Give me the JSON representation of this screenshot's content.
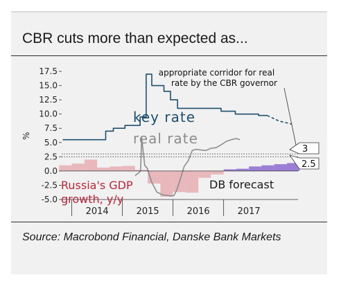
{
  "title": "CBR cuts more than expected as...",
  "source": "Source: Macrobond Financial, Danske Bank Markets",
  "chart_data": {
    "type": "line",
    "ylabel": "%",
    "ylim": [
      -5.0,
      17.5
    ],
    "yticks": [
      "17.5",
      "15.0",
      "12.5",
      "10.0",
      "7.5",
      "5.0",
      "2.5",
      "0.0",
      "-2.5",
      "-5.0"
    ],
    "ytick_values": [
      17.5,
      15.0,
      12.5,
      10.0,
      7.5,
      5.0,
      2.5,
      0.0,
      -2.5,
      -5.0
    ],
    "xlim": [
      2013.3,
      2017.97
    ],
    "xticks": [
      "2014",
      "2015",
      "2016",
      "2017"
    ],
    "xtick_centers": [
      2014.0,
      2015.0,
      2016.0,
      2017.0
    ],
    "year_separators": [
      2013.5,
      2014.5,
      2015.5,
      2016.5
    ],
    "annotations": {
      "key_rate": "key rate",
      "real_rate": "real rate",
      "gdp": "Russia's GDP growth, y/y",
      "db_forecast": "DB forecast",
      "corridor": "appropriate corridor for real rate by the CBR governor",
      "corridor_upper": "3",
      "corridor_lower": "2.5"
    },
    "corridor": [
      2.5,
      3.0
    ],
    "colors": {
      "key_rate": "#1f4e6e",
      "real_rate": "#8c8c8c",
      "gdp": "#e8b8bc",
      "gdp_label": "#b5283c",
      "forecast": "#9b7fd4",
      "corridor": "#555555"
    },
    "series": [
      {
        "name": "key rate",
        "x": [
          2013.32,
          2013.68,
          2013.68,
          2014.17,
          2014.17,
          2014.32,
          2014.32,
          2014.55,
          2014.55,
          2014.85,
          2014.85,
          2014.97,
          2014.97,
          2015.08,
          2015.08,
          2015.32,
          2015.32,
          2015.45,
          2015.45,
          2015.59,
          2015.59,
          2016.45,
          2016.45,
          2016.73,
          2016.73,
          2017.19,
          2017.19,
          2017.36
        ],
        "y": [
          5.5,
          5.5,
          5.5,
          5.5,
          7.0,
          7.0,
          7.5,
          7.5,
          8.0,
          8.0,
          9.5,
          9.5,
          17.0,
          17.0,
          15.0,
          15.0,
          14.0,
          14.0,
          12.5,
          12.5,
          11.0,
          11.0,
          10.5,
          10.5,
          10.0,
          10.0,
          9.75,
          9.75
        ]
      },
      {
        "name": "key rate forecast",
        "x": [
          2017.36,
          2017.6,
          2017.85
        ],
        "y": [
          9.75,
          8.75,
          8.25
        ]
      },
      {
        "name": "real rate",
        "x": [
          2014.75,
          2014.84,
          2014.86,
          2014.88,
          2014.94,
          2014.99,
          2015.08,
          2015.18,
          2015.3,
          2015.4,
          2015.47,
          2015.52,
          2015.58,
          2015.64,
          2015.72,
          2015.8,
          2015.88,
          2015.95,
          2016.05,
          2016.15,
          2016.25,
          2016.35,
          2016.45,
          2016.55,
          2016.65,
          2016.75,
          2016.82
        ],
        "y": [
          -0.8,
          -0.2,
          0.2,
          5.8,
          1.0,
          0.5,
          -2.0,
          -3.7,
          -4.2,
          -4.3,
          -4.4,
          -4.3,
          -3.2,
          -1.5,
          0.8,
          1.8,
          3.6,
          3.8,
          3.7,
          3.6,
          4.0,
          4.1,
          4.6,
          5.2,
          5.5,
          5.7,
          5.5
        ]
      }
    ],
    "gdp_bars": {
      "name": "Russia's GDP growth, y/y",
      "x": [
        2013.375,
        2013.625,
        2013.875,
        2014.125,
        2014.375,
        2014.625,
        2014.875,
        2015.125,
        2015.375,
        2015.625,
        2015.875,
        2016.125,
        2016.375
      ],
      "values": [
        1.0,
        1.3,
        2.0,
        0.6,
        0.8,
        0.9,
        0.2,
        -2.2,
        -4.5,
        -3.7,
        -3.8,
        -1.2,
        -0.6
      ]
    },
    "forecast_bars": {
      "name": "DB forecast",
      "x": [
        2016.625,
        2016.875,
        2017.125,
        2017.375,
        2017.625,
        2017.875
      ],
      "values": [
        0.3,
        0.4,
        0.8,
        1.0,
        1.2,
        1.4
      ]
    }
  }
}
